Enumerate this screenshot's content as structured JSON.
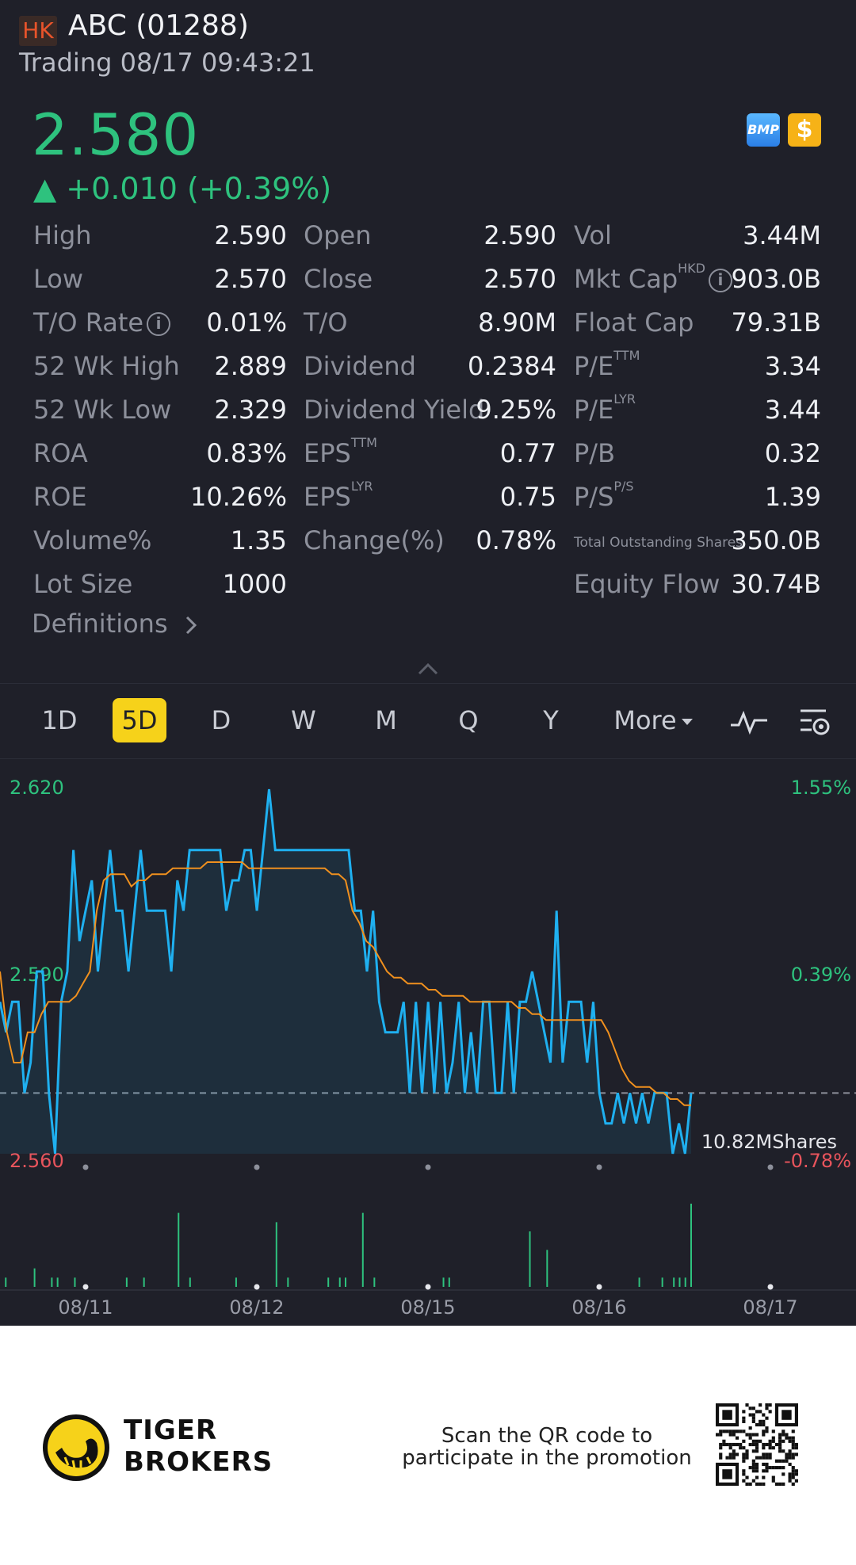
{
  "header": {
    "market": "HK",
    "title": "ABC (01288)",
    "status": "Trading 08/17 09:43:21"
  },
  "quote": {
    "price": "2.580",
    "change": "▲ +0.010 (+0.39%)",
    "badges": [
      "BMP",
      "$"
    ],
    "price_color": "#2ec27e"
  },
  "stats": {
    "high_label": "High",
    "high": "2.590",
    "open_label": "Open",
    "open": "2.590",
    "vol_label": "Vol",
    "vol": "3.44M",
    "low_label": "Low",
    "low": "2.570",
    "close_label": "Close",
    "close": "2.570",
    "mktcap_label": "Mkt Cap",
    "mktcap_sup": "HKD",
    "mktcap": "903.0B",
    "to_rate_label": "T/O Rate",
    "to_rate": "0.01%",
    "to_label": "T/O",
    "to": "8.90M",
    "float_label": "Float Cap",
    "float": "79.31B",
    "wk52h_label": "52 Wk High",
    "wk52h": "2.889",
    "div_label": "Dividend",
    "div": "0.2384",
    "pe_ttm_label": "P/E",
    "pe_ttm_sup": "TTM",
    "pe_ttm": "3.34",
    "wk52l_label": "52 Wk Low",
    "wk52l": "2.329",
    "divy_label": "Dividend Yield",
    "divy": "9.25%",
    "pe_lyr_label": "P/E",
    "pe_lyr_sup": "LYR",
    "pe_lyr": "3.44",
    "roa_label": "ROA",
    "roa": "0.83%",
    "eps_ttm_label": "EPS",
    "eps_ttm_sup": "TTM",
    "eps_ttm": "0.77",
    "pb_label": "P/B",
    "pb": "0.32",
    "roe_label": "ROE",
    "roe": "10.26%",
    "eps_lyr_label": "EPS",
    "eps_lyr_sup": "LYR",
    "eps_lyr": "0.75",
    "ps_label": "P/S",
    "ps_sup": "P/S",
    "ps": "1.39",
    "volpct_label": "Volume%",
    "volpct": "1.35",
    "chg_label": "Change(%)",
    "chg": "0.78%",
    "tos_label": "Total Outstanding Shares",
    "tos": "350.0B",
    "lot_label": "Lot Size",
    "lot": "1000",
    "eqflow_label": "Equity Flow",
    "eqflow": "30.74B"
  },
  "definitions_label": "Definitions",
  "tabs": [
    "1D",
    "5D",
    "D",
    "W",
    "M",
    "Q",
    "Y",
    "More"
  ],
  "active_tab": "5D",
  "chart_data": {
    "type": "line",
    "y_left_labels": [
      "2.620",
      "2.590",
      "2.560"
    ],
    "y_right_labels": [
      "1.55%",
      "0.39%",
      "-0.78%"
    ],
    "x_labels": [
      "08/11",
      "08/12",
      "08/15",
      "08/16",
      "08/17"
    ],
    "prev_close": 2.57,
    "ylim": [
      2.56,
      2.62
    ],
    "volume_label": "10.82MShares",
    "series": [
      {
        "color": "#1fb0f0",
        "values": [
          2.585,
          2.58,
          2.585,
          2.585,
          2.57,
          2.575,
          2.59,
          2.59,
          2.57,
          2.56,
          2.585,
          2.59,
          2.61,
          2.595,
          2.6,
          2.605,
          2.59,
          2.6,
          2.61,
          2.6,
          2.6,
          2.59,
          2.6,
          2.61,
          2.6,
          2.6,
          2.6,
          2.6,
          2.59,
          2.605,
          2.6,
          2.61,
          2.61,
          2.61,
          2.61,
          2.61,
          2.61,
          2.6,
          2.605,
          2.605,
          2.61,
          2.61,
          2.6,
          2.61,
          2.62,
          2.61,
          2.61,
          2.61,
          2.61,
          2.61,
          2.61,
          2.61,
          2.61,
          2.61,
          2.61,
          2.61,
          2.61,
          2.61,
          2.6,
          2.6,
          2.59,
          2.6,
          2.585,
          2.58,
          2.58,
          2.58,
          2.585,
          2.57,
          2.585,
          2.57,
          2.585,
          2.57,
          2.585,
          2.57,
          2.575,
          2.585,
          2.57,
          2.58,
          2.57,
          2.585,
          2.585,
          2.57,
          2.57,
          2.585,
          2.57,
          2.585,
          2.585,
          2.59,
          2.585,
          2.58,
          2.575,
          2.6,
          2.575,
          2.585,
          2.585,
          2.585,
          2.575,
          2.585,
          2.57,
          2.565,
          2.565,
          2.57,
          2.565,
          2.57,
          2.565,
          2.57,
          2.565,
          2.57,
          2.57,
          2.57,
          2.56,
          2.565,
          2.56,
          2.57
        ]
      },
      {
        "color": "#f0901e",
        "values": [
          2.59,
          2.58,
          2.575,
          2.575,
          2.58,
          2.58,
          2.583,
          2.585,
          2.585,
          2.585,
          2.585,
          2.586,
          2.588,
          2.59,
          2.6,
          2.605,
          2.606,
          2.606,
          2.606,
          2.604,
          2.605,
          2.605,
          2.606,
          2.606,
          2.606,
          2.607,
          2.607,
          2.607,
          2.607,
          2.607,
          2.608,
          2.608,
          2.608,
          2.608,
          2.608,
          2.608,
          2.607,
          2.607,
          2.607,
          2.607,
          2.607,
          2.607,
          2.607,
          2.607,
          2.607,
          2.607,
          2.607,
          2.607,
          2.606,
          2.606,
          2.605,
          2.6,
          2.598,
          2.595,
          2.594,
          2.592,
          2.59,
          2.589,
          2.589,
          2.588,
          2.588,
          2.588,
          2.587,
          2.587,
          2.586,
          2.586,
          2.586,
          2.586,
          2.585,
          2.585,
          2.585,
          2.585,
          2.585,
          2.585,
          2.585,
          2.584,
          2.584,
          2.583,
          2.583,
          2.582,
          2.582,
          2.582,
          2.582,
          2.582,
          2.582,
          2.582,
          2.582,
          2.582,
          2.58,
          2.577,
          2.574,
          2.572,
          2.571,
          2.571,
          2.571,
          2.57,
          2.57,
          2.569,
          2.569,
          2.568,
          2.568
        ]
      }
    ],
    "volumes": [
      0,
      1,
      0,
      0,
      0,
      0,
      2,
      0,
      0,
      1,
      1,
      0,
      0,
      1,
      0,
      0,
      0,
      0,
      0,
      0,
      0,
      0,
      1,
      0,
      0,
      1,
      0,
      0,
      0,
      0,
      0,
      8,
      0,
      1,
      0,
      0,
      0,
      0,
      0,
      0,
      0,
      1,
      0,
      0,
      0,
      0,
      0,
      0,
      7,
      0,
      1,
      0,
      0,
      0,
      0,
      0,
      0,
      1,
      0,
      1,
      1,
      0,
      0,
      8,
      0,
      1,
      0,
      0,
      0,
      0,
      0,
      0,
      0,
      0,
      0,
      0,
      0,
      1,
      1,
      0,
      0,
      0,
      0,
      0,
      0,
      0,
      0,
      0,
      0,
      0,
      0,
      0,
      6,
      0,
      0,
      4,
      0,
      0,
      0,
      0,
      0,
      0,
      0,
      0,
      0,
      0,
      0,
      0,
      0,
      0,
      0,
      1,
      0,
      0,
      0,
      1,
      0,
      1,
      1,
      1,
      9
    ]
  },
  "footer": {
    "brand_line1": "TIGER",
    "brand_line2": "BROKERS",
    "promo_line1": "Scan the QR code to",
    "promo_line2": "participate in the promotion"
  }
}
